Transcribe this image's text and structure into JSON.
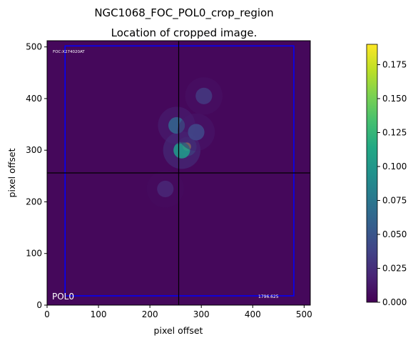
{
  "chart_data": {
    "type": "heatmap",
    "title": "NGC1068_FOC_POL0_crop_region",
    "subtitle": "Location of cropped image.",
    "xlabel": "pixel offset",
    "ylabel": "pixel offset",
    "xlim": [
      0,
      512
    ],
    "ylim": [
      0,
      512
    ],
    "xticks": [
      0,
      100,
      200,
      300,
      400,
      500
    ],
    "yticks": [
      0,
      100,
      200,
      300,
      400,
      500
    ],
    "grid": false,
    "colormap": "viridis",
    "colorbar": {
      "range": [
        0,
        0.19
      ],
      "ticks": [
        0.0,
        0.025,
        0.05,
        0.075,
        0.1,
        0.125,
        0.15,
        0.175
      ],
      "tick_labels": [
        "0.000",
        "0.025",
        "0.050",
        "0.075",
        "0.100",
        "0.125",
        "0.150",
        "0.175"
      ]
    },
    "background_value": 0.004,
    "crop_rectangle": {
      "x0": 35,
      "y0": 18,
      "x1": 480,
      "y1": 502,
      "color": "#0000ff"
    },
    "crosshair": {
      "x": 256,
      "y": 256,
      "color": "#000000"
    },
    "emission_peaks": [
      {
        "x": 272,
        "y": 307,
        "value": 0.19
      },
      {
        "x": 262,
        "y": 300,
        "value": 0.1
      },
      {
        "x": 252,
        "y": 348,
        "value": 0.06
      },
      {
        "x": 290,
        "y": 335,
        "value": 0.04
      },
      {
        "x": 305,
        "y": 405,
        "value": 0.03
      },
      {
        "x": 230,
        "y": 225,
        "value": 0.02
      }
    ],
    "annotations": {
      "header": "FOC:X274020AT",
      "filter": "POL0",
      "exposure": "1796.625"
    }
  }
}
